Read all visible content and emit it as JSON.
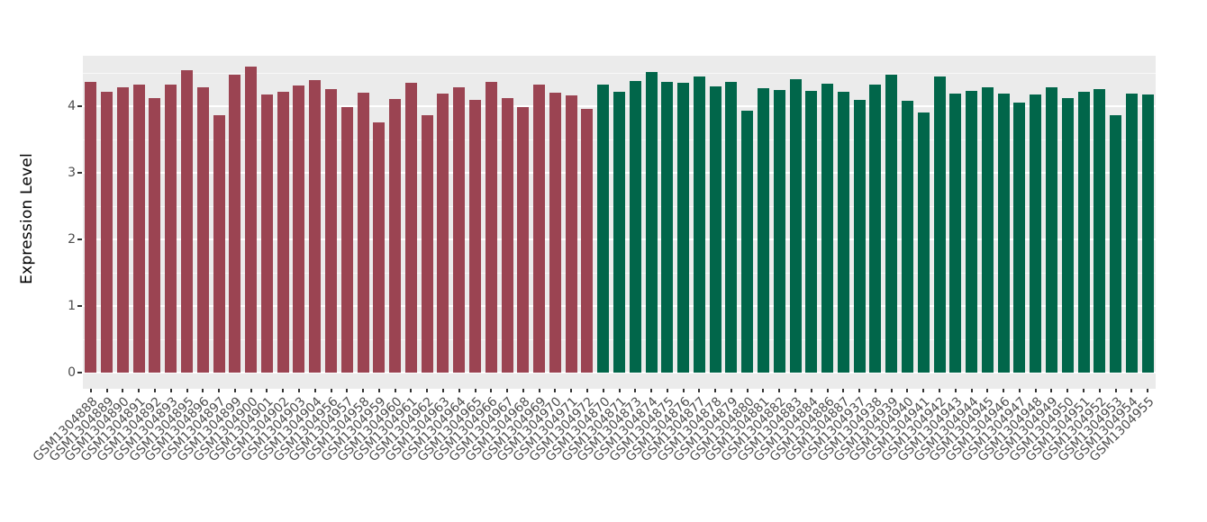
{
  "figure": {
    "background": "#FFFFFF",
    "panel_background": "#EBEBEB",
    "grid_color": "#FFFFFF",
    "axis_tick_color": "#333333",
    "axis_text_color": "#4D4D4D",
    "axis_title_color": "#000000"
  },
  "chart_data": {
    "type": "bar",
    "title": "",
    "xlabel": "",
    "ylabel": "Expression Level",
    "ylim": [
      0,
      4.76
    ],
    "yticks": [
      0,
      1,
      2,
      3,
      4
    ],
    "grid": true,
    "legend": false,
    "x_tick_rotation_deg": 45,
    "groups": [
      {
        "name": "group-red",
        "color": "#9B4452",
        "samples": [
          "GSM1304888",
          "GSM1304889",
          "GSM1304890",
          "GSM1304891",
          "GSM1304892",
          "GSM1304893",
          "GSM1304895",
          "GSM1304896",
          "GSM1304897",
          "GSM1304899",
          "GSM1304900",
          "GSM1304901",
          "GSM1304902",
          "GSM1304903",
          "GSM1304904",
          "GSM1304956",
          "GSM1304957",
          "GSM1304958",
          "GSM1304959",
          "GSM1304960",
          "GSM1304961",
          "GSM1304962",
          "GSM1304963",
          "GSM1304964",
          "GSM1304965",
          "GSM1304966",
          "GSM1304967",
          "GSM1304968",
          "GSM1304969",
          "GSM1304970",
          "GSM1304971",
          "GSM1304972"
        ],
        "values": [
          4.37,
          4.22,
          4.29,
          4.32,
          4.12,
          4.32,
          4.54,
          4.29,
          3.86,
          4.47,
          4.6,
          4.18,
          4.22,
          4.31,
          4.39,
          4.26,
          3.99,
          4.2,
          3.76,
          4.11,
          4.35,
          3.86,
          4.19,
          4.28,
          4.1,
          4.37,
          4.12,
          3.98,
          4.32,
          4.2,
          4.16,
          3.96
        ]
      },
      {
        "name": "group-green",
        "color": "#01664A",
        "samples": [
          "GSM1304870",
          "GSM1304871",
          "GSM1304873",
          "GSM1304874",
          "GSM1304875",
          "GSM1304876",
          "GSM1304877",
          "GSM1304878",
          "GSM1304879",
          "GSM1304880",
          "GSM1304881",
          "GSM1304882",
          "GSM1304883",
          "GSM1304884",
          "GSM1304886",
          "GSM1304887",
          "GSM1304937",
          "GSM1304938",
          "GSM1304939",
          "GSM1304940",
          "GSM1304941",
          "GSM1304942",
          "GSM1304943",
          "GSM1304944",
          "GSM1304945",
          "GSM1304946",
          "GSM1304947",
          "GSM1304948",
          "GSM1304949",
          "GSM1304950",
          "GSM1304951",
          "GSM1304952",
          "GSM1304953",
          "GSM1304954",
          "GSM1304955"
        ],
        "values": [
          4.32,
          4.21,
          4.38,
          4.51,
          4.37,
          4.35,
          4.44,
          4.3,
          4.37,
          3.93,
          4.27,
          4.25,
          4.4,
          4.23,
          4.34,
          4.21,
          4.09,
          4.32,
          4.47,
          4.08,
          3.9,
          4.44,
          4.19,
          4.23,
          4.28,
          4.19,
          4.05,
          4.17,
          4.29,
          4.12,
          4.22,
          4.26,
          3.86,
          4.19,
          4.18
        ]
      }
    ]
  }
}
